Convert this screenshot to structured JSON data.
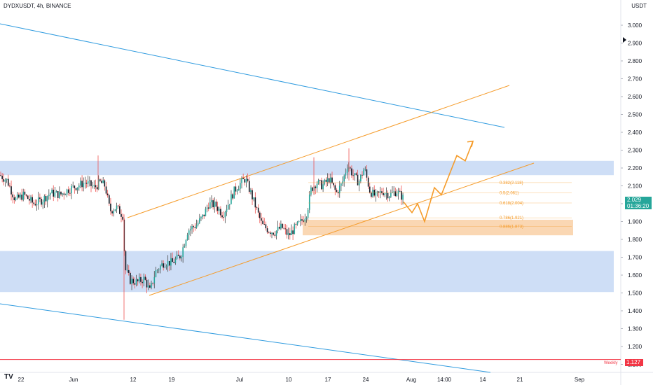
{
  "header": {
    "symbol": "DYDXUSDT, 4h, BINANCE",
    "currency": "USDT"
  },
  "price_badge": {
    "price": "2.029",
    "countdown": "01:36:20"
  },
  "weekly_badge": {
    "price": "1.127",
    "label": "Weekly"
  },
  "colors": {
    "up": "#26a69a",
    "down": "#ef5350",
    "candle_body": "#131722",
    "zone": "#c6d8f5",
    "channel": "#f59c2b",
    "trend": "#2f9bdf",
    "weekly": "#f23645",
    "fib_zone": "#f8c99a"
  },
  "chart_data": {
    "type": "candlestick",
    "y_axis": {
      "range": [
        1.0,
        3.07
      ],
      "ticks": [
        "3.000",
        "2.900",
        "2.800",
        "2.700",
        "2.600",
        "2.500",
        "2.400",
        "2.300",
        "2.200",
        "2.100",
        "2.000",
        "1.900",
        "1.800",
        "1.700",
        "1.600",
        "1.500",
        "1.400",
        "1.300",
        "1.200",
        "1.100"
      ],
      "position": "right"
    },
    "x_axis": {
      "labels": [
        "22",
        "Jun",
        "12",
        "19",
        "Jul",
        "10",
        "17",
        "24",
        "Aug",
        "14:00",
        "14",
        "21",
        "Sep"
      ]
    },
    "series_path": [
      [
        0,
        2.16
      ],
      [
        10,
        2.13
      ],
      [
        22,
        2.02
      ],
      [
        34,
        2.05
      ],
      [
        48,
        2.0
      ],
      [
        60,
        2.02
      ],
      [
        72,
        2.06
      ],
      [
        86,
        2.05
      ],
      [
        98,
        2.08
      ],
      [
        110,
        2.1
      ],
      [
        122,
        2.12
      ],
      [
        135,
        2.09
      ],
      [
        143,
        2.12
      ],
      [
        150,
        2.1
      ],
      [
        157,
        1.96
      ],
      [
        166,
        1.98
      ],
      [
        176,
        1.93
      ],
      [
        178,
        1.64
      ],
      [
        186,
        1.57
      ],
      [
        196,
        1.56
      ],
      [
        206,
        1.58
      ],
      [
        214,
        1.51
      ],
      [
        222,
        1.62
      ],
      [
        234,
        1.67
      ],
      [
        246,
        1.67
      ],
      [
        258,
        1.71
      ],
      [
        268,
        1.85
      ],
      [
        280,
        1.88
      ],
      [
        290,
        1.93
      ],
      [
        298,
        2.0
      ],
      [
        308,
        1.99
      ],
      [
        318,
        1.94
      ],
      [
        326,
        2.0
      ],
      [
        334,
        2.07
      ],
      [
        342,
        2.11
      ],
      [
        350,
        2.14
      ],
      [
        358,
        2.06
      ],
      [
        366,
        1.97
      ],
      [
        374,
        1.88
      ],
      [
        384,
        1.85
      ],
      [
        392,
        1.84
      ],
      [
        402,
        1.87
      ],
      [
        412,
        1.82
      ],
      [
        420,
        1.86
      ],
      [
        430,
        1.9
      ],
      [
        438,
        1.95
      ],
      [
        444,
        2.08
      ],
      [
        452,
        2.12
      ],
      [
        460,
        2.1
      ],
      [
        470,
        2.14
      ],
      [
        480,
        2.06
      ],
      [
        488,
        2.11
      ],
      [
        496,
        2.22
      ],
      [
        504,
        2.16
      ],
      [
        512,
        2.12
      ],
      [
        520,
        2.2
      ],
      [
        528,
        2.07
      ],
      [
        536,
        2.04
      ],
      [
        546,
        2.07
      ],
      [
        556,
        2.05
      ],
      [
        566,
        2.07
      ],
      [
        576,
        2.03
      ]
    ],
    "zones": [
      {
        "type": "resistance",
        "low": 2.16,
        "high": 2.24
      },
      {
        "type": "support",
        "low": 1.505,
        "high": 1.735
      }
    ],
    "fibonacci": [
      {
        "label": "0.382(2.118)",
        "value": 2.118
      },
      {
        "label": "0.5(2.061)",
        "value": 2.061
      },
      {
        "label": "0.618(2.004)",
        "value": 2.004
      },
      {
        "label": "0.786(1.921)",
        "value": 1.921
      },
      {
        "label": "0.886(1.873)",
        "value": 1.873
      }
    ],
    "fib_zone": {
      "low": 1.823,
      "high": 1.91
    },
    "weekly_level": 1.127,
    "projection_path": [
      [
        576,
        2.01
      ],
      [
        588,
        1.95
      ],
      [
        596,
        2.0
      ],
      [
        606,
        1.9
      ],
      [
        620,
        2.09
      ],
      [
        630,
        2.05
      ],
      [
        652,
        2.27
      ],
      [
        664,
        2.24
      ],
      [
        675,
        2.35
      ]
    ]
  }
}
